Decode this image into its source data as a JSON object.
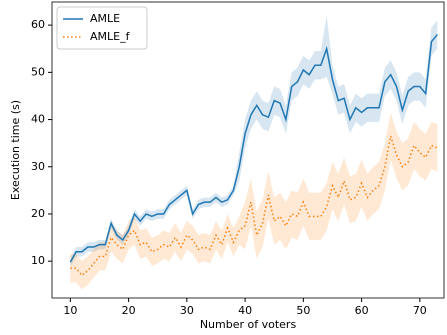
{
  "chart_data": {
    "type": "line",
    "xlabel": "Number of voters",
    "ylabel": "Execution time (s)",
    "x": [
      10,
      11,
      12,
      13,
      14,
      15,
      16,
      17,
      18,
      19,
      20,
      21,
      22,
      23,
      24,
      25,
      26,
      27,
      28,
      29,
      30,
      31,
      32,
      33,
      34,
      35,
      36,
      37,
      38,
      39,
      40,
      41,
      42,
      43,
      44,
      45,
      46,
      47,
      48,
      49,
      50,
      51,
      52,
      53,
      54,
      55,
      56,
      57,
      58,
      59,
      60,
      61,
      62,
      63,
      64,
      65,
      66,
      67,
      68,
      69,
      70,
      71,
      72,
      73
    ],
    "xlim": [
      6.85,
      74.15
    ],
    "xticks": [
      10,
      20,
      30,
      40,
      50,
      60,
      70
    ],
    "ylim": [
      2.2,
      64.9
    ],
    "yticks": [
      10,
      20,
      30,
      40,
      50,
      60
    ],
    "legend": "upper left",
    "series": [
      {
        "name": "AMLE",
        "color": "#1f77b4",
        "dash": "solid",
        "values": [
          9.8,
          12,
          12,
          13,
          13,
          13.5,
          13.5,
          18,
          15.5,
          14.5,
          16.5,
          20,
          18.5,
          20,
          19.5,
          20,
          20,
          22,
          23,
          24,
          25,
          20,
          22,
          22.5,
          22.5,
          23.5,
          22.5,
          23,
          25,
          30,
          37,
          41,
          43,
          41,
          40.5,
          44,
          43.5,
          40,
          47,
          48,
          50.5,
          49.5,
          51.5,
          51.5,
          55,
          48.5,
          44,
          44.5,
          40,
          42.5,
          41.5,
          42.5,
          42.5,
          42.5,
          48,
          49.5,
          47,
          42,
          46,
          47,
          47,
          45.5,
          56.5,
          58
        ],
        "lower": [
          8.8,
          11,
          11,
          12,
          12,
          12.5,
          12.5,
          17,
          14.5,
          13.5,
          15.5,
          19,
          17.5,
          19,
          18.5,
          19,
          19,
          21,
          22,
          23,
          24,
          19,
          21,
          21.5,
          21.5,
          22.5,
          21.5,
          22,
          24,
          27,
          34,
          38,
          40,
          38,
          37.5,
          41,
          40.5,
          37,
          44,
          45,
          47.5,
          46.5,
          48.5,
          48.5,
          49,
          45.5,
          41,
          41.5,
          37,
          39.5,
          38.5,
          39.5,
          39.5,
          39.5,
          45,
          46.5,
          44,
          39,
          43,
          44,
          44,
          42.5,
          53.5,
          55
        ],
        "upper": [
          10.8,
          13,
          13,
          14,
          14,
          14.5,
          14.5,
          19,
          16.5,
          15.5,
          17.5,
          21,
          19.5,
          21,
          20.5,
          21,
          21,
          23,
          24,
          25,
          26,
          21,
          23,
          23.5,
          23.5,
          24.5,
          23.5,
          24,
          26,
          33,
          40,
          44,
          46,
          44,
          43.5,
          47,
          46.5,
          43,
          50,
          51,
          53.5,
          52.5,
          54.5,
          54.5,
          62,
          51.5,
          47,
          47.5,
          43,
          45.5,
          44.5,
          45.5,
          45.5,
          45.5,
          51,
          52.5,
          50,
          45,
          49,
          50,
          50,
          48.5,
          59.5,
          61
        ]
      },
      {
        "name": "AMLE_f",
        "color": "#ff7f0e",
        "dash": "dotted",
        "values": [
          8.5,
          8.5,
          7,
          8,
          9.5,
          11,
          11,
          15,
          13.5,
          12.5,
          15.5,
          16.5,
          13.5,
          14,
          12,
          12.5,
          13.5,
          13,
          15,
          13,
          15.5,
          14.5,
          12.5,
          13,
          12.5,
          15.5,
          13.5,
          17,
          14,
          16.5,
          17.5,
          22.5,
          15.5,
          18,
          24,
          18.5,
          19.5,
          17.5,
          20,
          19.5,
          22.5,
          19.5,
          19.5,
          19.5,
          21.5,
          26,
          23.5,
          27,
          23,
          23.5,
          26.5,
          23.5,
          25,
          26,
          30,
          36.5,
          32.5,
          30,
          31,
          34.5,
          33,
          32,
          34.5,
          34
        ],
        "lower": [
          5.5,
          5.5,
          4,
          5,
          6.5,
          8,
          8,
          12,
          10.5,
          9.5,
          12.5,
          13.5,
          10.5,
          11,
          9,
          9.5,
          10.5,
          10,
          12,
          10,
          12.5,
          11.5,
          9.5,
          10,
          9.5,
          12.5,
          10.5,
          14,
          11,
          13.5,
          12.5,
          17.5,
          10.5,
          13,
          19,
          13.5,
          14.5,
          12.5,
          15,
          14.5,
          17.5,
          14.5,
          14.5,
          14.5,
          16.5,
          21,
          18.5,
          22,
          18,
          18.5,
          21.5,
          18.5,
          20,
          21,
          25,
          31.5,
          27.5,
          25,
          26,
          29.5,
          28,
          27,
          29.5,
          29
        ],
        "upper": [
          11.5,
          11.5,
          10,
          11,
          12.5,
          14,
          14,
          18,
          16.5,
          15.5,
          18.5,
          19.5,
          16.5,
          17,
          15,
          15.5,
          16.5,
          16,
          18,
          16,
          18.5,
          17.5,
          15.5,
          16,
          15.5,
          18.5,
          16.5,
          20,
          17,
          19.5,
          22.5,
          27.5,
          20.5,
          23,
          29,
          23.5,
          24.5,
          22.5,
          25,
          24.5,
          27.5,
          24.5,
          24.5,
          24.5,
          26.5,
          31,
          28.5,
          32,
          28,
          28.5,
          31.5,
          28.5,
          30,
          31,
          35,
          41.5,
          37.5,
          35,
          36,
          39.5,
          38,
          37,
          39.5,
          39
        ]
      }
    ]
  }
}
